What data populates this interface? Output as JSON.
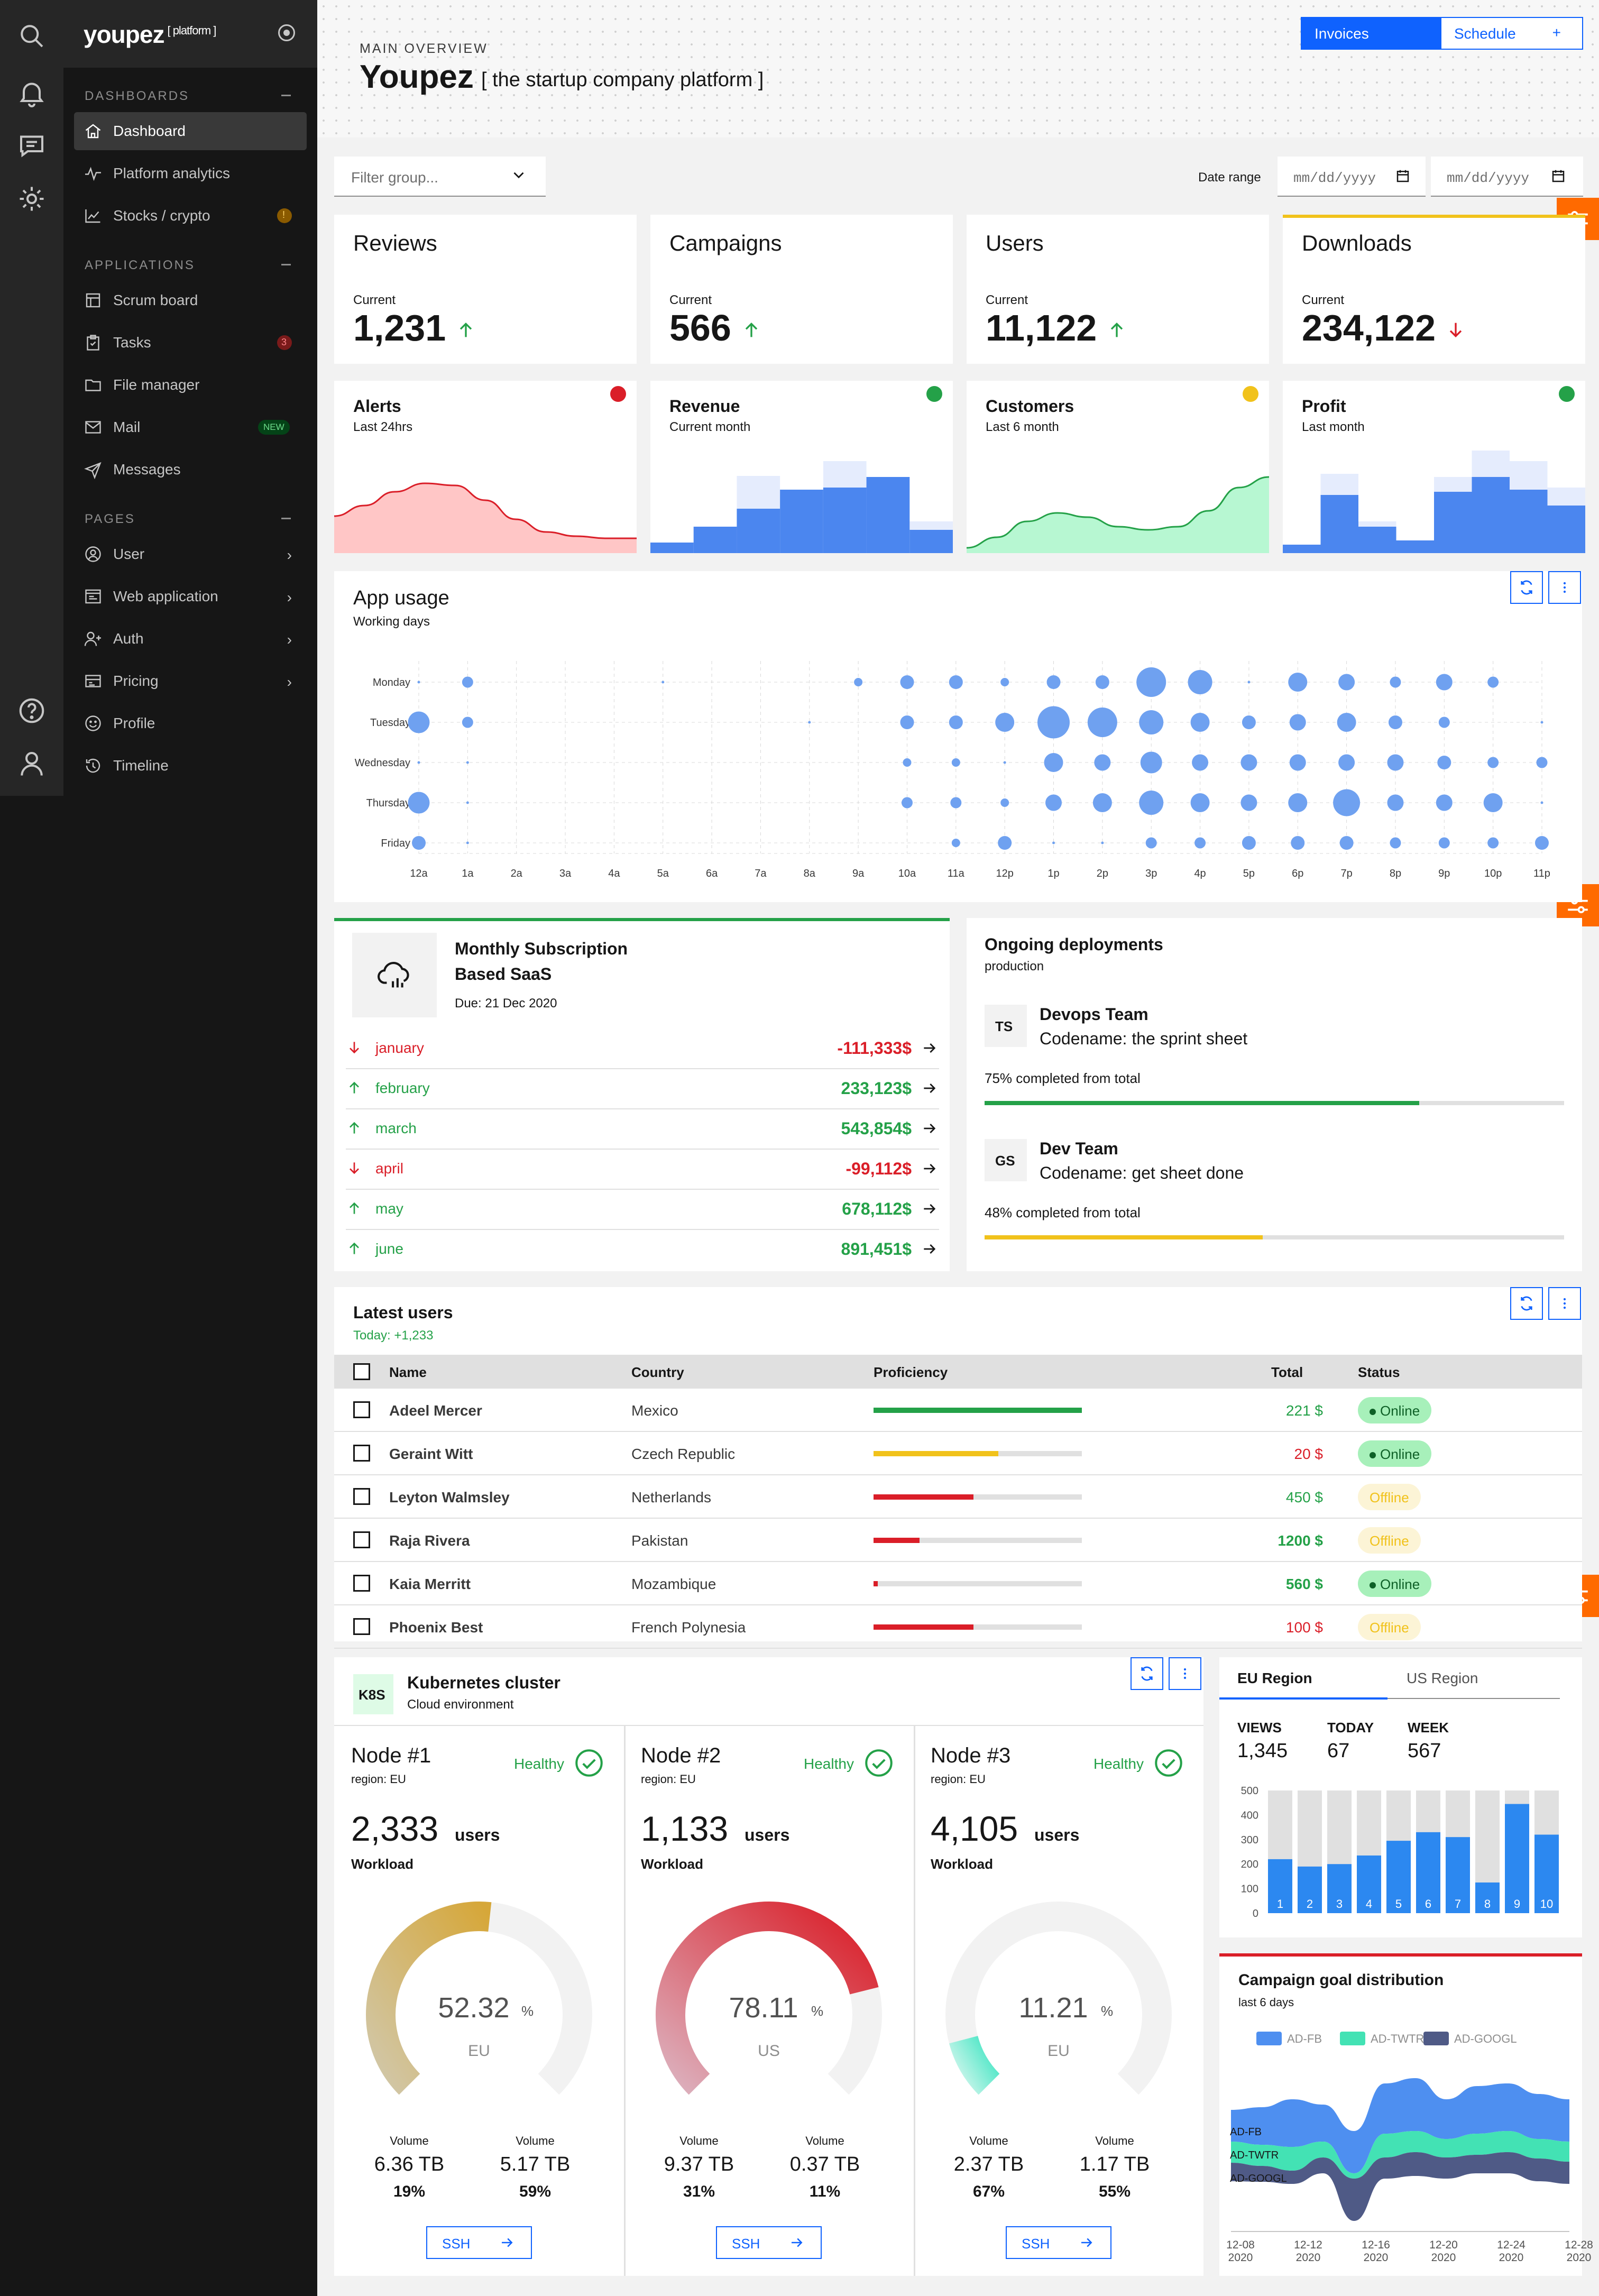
{
  "brand": {
    "name": "youpez",
    "tag": "[ platform ]"
  },
  "sidebar": {
    "sections": [
      {
        "label": "DASHBOARDS",
        "items": [
          {
            "label": "Dashboard",
            "active": true
          },
          {
            "label": "Platform analytics"
          },
          {
            "label": "Stocks / crypto",
            "badge": "!"
          }
        ]
      },
      {
        "label": "APPLICATIONS",
        "items": [
          {
            "label": "Scrum board"
          },
          {
            "label": "Tasks",
            "badge": "3"
          },
          {
            "label": "File manager"
          },
          {
            "label": "Mail",
            "badge": "NEW"
          },
          {
            "label": "Messages"
          }
        ]
      },
      {
        "label": "PAGES",
        "items": [
          {
            "label": "User"
          },
          {
            "label": "Web application"
          },
          {
            "label": "Auth"
          },
          {
            "label": "Pricing"
          },
          {
            "label": "Profile"
          },
          {
            "label": "Timeline"
          }
        ]
      }
    ]
  },
  "header": {
    "eyebrow": "MAIN OVERVIEW",
    "title": "Youpez",
    "subtitle": "[ the startup company platform ]",
    "invoices_label": "Invoices",
    "schedule_label": "Schedule",
    "schedule_icon": "+"
  },
  "filters": {
    "group_placeholder": "Filter group...",
    "date_range_label": "Date range",
    "date_placeholder": "mm/dd/yyyy"
  },
  "kpis": [
    {
      "title": "Reviews",
      "current_label": "Current",
      "value": "1,231",
      "trend": "up"
    },
    {
      "title": "Campaigns",
      "current_label": "Current",
      "value": "566",
      "trend": "up"
    },
    {
      "title": "Users",
      "current_label": "Current",
      "value": "11,122",
      "trend": "up"
    },
    {
      "title": "Downloads",
      "current_label": "Current",
      "value": "234,122",
      "trend": "down"
    }
  ],
  "mini_cards": [
    {
      "title": "Alerts",
      "subtitle": "Last 24hrs",
      "status_color": "#da1e28"
    },
    {
      "title": "Revenue",
      "subtitle": "Current month",
      "status_color": "#24a148"
    },
    {
      "title": "Customers",
      "subtitle": "Last 6 month",
      "status_color": "#f1c21b"
    },
    {
      "title": "Profit",
      "subtitle": "Last month",
      "status_color": "#24a148"
    }
  ],
  "app_usage": {
    "title": "App usage",
    "subtitle": "Working days"
  },
  "subscription": {
    "title_line1": "Monthly Subscription",
    "title_line2": "Based SaaS",
    "due": "Due: 21 Dec 2020",
    "rows": [
      {
        "month": "january",
        "amount": "-111,333$",
        "trend": "down"
      },
      {
        "month": "february",
        "amount": "233,123$",
        "trend": "up"
      },
      {
        "month": "march",
        "amount": "543,854$",
        "trend": "up"
      },
      {
        "month": "april",
        "amount": "-99,112$",
        "trend": "down"
      },
      {
        "month": "may",
        "amount": "678,112$",
        "trend": "up"
      },
      {
        "month": "june",
        "amount": "891,451$",
        "trend": "up"
      }
    ]
  },
  "deployments": {
    "title": "Ongoing deployments",
    "subtitle": "production",
    "items": [
      {
        "initials": "TS",
        "team": "Devops Team",
        "codename": "Codename: the sprint sheet",
        "progress_text": "75% completed from total",
        "progress": 0.75,
        "color": "#24a148"
      },
      {
        "initials": "GS",
        "team": "Dev Team",
        "codename": "Codename: get sheet done",
        "progress_text": "48% completed from total",
        "progress": 0.48,
        "color": "#f1c21b"
      }
    ]
  },
  "latest_users": {
    "title": "Latest users",
    "today": "Today: +1,233",
    "columns": [
      "Name",
      "Country",
      "Proficiency",
      "Total",
      "Status"
    ],
    "rows": [
      {
        "name": "Adeel Mercer",
        "country": "Mexico",
        "proficiency": 1.0,
        "bar_color": "#24a148",
        "total": "221 $",
        "total_color": "#24a148",
        "bold_total": false,
        "status": "Online"
      },
      {
        "name": "Geraint Witt",
        "country": "Czech Republic",
        "proficiency": 0.6,
        "bar_color": "#f1c21b",
        "total": "20 $",
        "total_color": "#da1e28",
        "bold_total": false,
        "status": "Online"
      },
      {
        "name": "Leyton Walmsley",
        "country": "Netherlands",
        "proficiency": 0.48,
        "bar_color": "#da1e28",
        "total": "450 $",
        "total_color": "#24a148",
        "bold_total": false,
        "status": "Offline"
      },
      {
        "name": "Raja Rivera",
        "country": "Pakistan",
        "proficiency": 0.22,
        "bar_color": "#da1e28",
        "total": "1200 $",
        "total_color": "#24a148",
        "bold_total": true,
        "status": "Offline"
      },
      {
        "name": "Kaia Merritt",
        "country": "Mozambique",
        "proficiency": 0.02,
        "bar_color": "#da1e28",
        "total": "560 $",
        "total_color": "#24a148",
        "bold_total": true,
        "status": "Online"
      },
      {
        "name": "Phoenix Best",
        "country": "French Polynesia",
        "proficiency": 0.48,
        "bar_color": "#da1e28",
        "total": "100 $",
        "total_color": "#da1e28",
        "bold_total": false,
        "status": "Offline"
      }
    ]
  },
  "kubernetes": {
    "badge": "K8S",
    "title": "Kubernetes cluster",
    "subtitle": "Cloud environment",
    "nodes": [
      {
        "name": "Node #1",
        "region": "region: EU",
        "health": "Healthy",
        "users": "2,333",
        "users_label": "users",
        "workload_label": "Workload",
        "pct": "52.32",
        "pct_value": 52.32,
        "pct_sign": "%",
        "loc": "EU",
        "gauge_color": "#d6a739",
        "gauge_color2": "#d1c7a8",
        "volumes": [
          {
            "label": "Volume",
            "value": "6.36 TB",
            "pct": "19%"
          },
          {
            "label": "Volume",
            "value": "5.17 TB",
            "pct": "59%"
          }
        ],
        "ssh": "SSH"
      },
      {
        "name": "Node #2",
        "region": "region: EU",
        "health": "Healthy",
        "users": "1,133",
        "users_label": "users",
        "workload_label": "Workload",
        "pct": "78.11",
        "pct_value": 78.11,
        "pct_sign": "%",
        "loc": "US",
        "gauge_color": "#da1e28",
        "gauge_color2": "#dcb0bd",
        "volumes": [
          {
            "label": "Volume",
            "value": "9.37 TB",
            "pct": "31%"
          },
          {
            "label": "Volume",
            "value": "0.37 TB",
            "pct": "11%"
          }
        ],
        "ssh": "SSH"
      },
      {
        "name": "Node #3",
        "region": "region: EU",
        "health": "Healthy",
        "users": "4,105",
        "users_label": "users",
        "workload_label": "Workload",
        "pct": "11.21",
        "pct_value": 11.21,
        "pct_sign": "%",
        "loc": "EU",
        "gauge_color": "#42e5c3",
        "gauge_color2": "#c8f5ea",
        "volumes": [
          {
            "label": "Volume",
            "value": "2.37 TB",
            "pct": "67%"
          },
          {
            "label": "Volume",
            "value": "1.17 TB",
            "pct": "55%"
          }
        ],
        "ssh": "SSH"
      }
    ]
  },
  "region": {
    "tabs": [
      "EU Region",
      "US Region"
    ],
    "stats": [
      {
        "label": "VIEWS",
        "value": "1,345"
      },
      {
        "label": "TODAY",
        "value": "67"
      },
      {
        "label": "WEEK",
        "value": "567"
      }
    ]
  },
  "campaign": {
    "title": "Campaign goal distribution",
    "subtitle": "last 6 days"
  },
  "colors": {
    "accent": "#0f62fe",
    "green": "#24a148",
    "red": "#da1e28",
    "yellow": "#f1c21b",
    "orange": "#ff6a00"
  },
  "chart_data": [
    {
      "type": "area",
      "title": "Alerts",
      "values": [
        0.35,
        0.45,
        0.58,
        0.66,
        0.64,
        0.5,
        0.32,
        0.2,
        0.16,
        0.14,
        0.14
      ]
    },
    {
      "type": "bar",
      "title": "Revenue",
      "series": [
        {
          "values": [
            0.1,
            0.25,
            0.42,
            0.6,
            0.62,
            0.72,
            0.22
          ]
        },
        {
          "values": [
            0.1,
            0.25,
            0.73,
            0.55,
            0.87,
            0.65,
            0.3
          ]
        }
      ]
    },
    {
      "type": "area",
      "title": "Customers",
      "values": [
        0.05,
        0.15,
        0.3,
        0.38,
        0.34,
        0.25,
        0.22,
        0.25,
        0.4,
        0.62,
        0.72
      ]
    },
    {
      "type": "bar",
      "title": "Profit",
      "series": [
        {
          "values": [
            0.08,
            0.55,
            0.25,
            0.12,
            0.58,
            0.72,
            0.6,
            0.45
          ]
        },
        {
          "values": [
            0.08,
            0.75,
            0.3,
            0.12,
            0.72,
            0.97,
            0.87,
            0.62
          ]
        }
      ]
    },
    {
      "type": "scatter",
      "title": "App usage",
      "x_labels": [
        "12a",
        "1a",
        "2a",
        "3a",
        "4a",
        "5a",
        "6a",
        "7a",
        "8a",
        "9a",
        "10a",
        "11a",
        "12p",
        "1p",
        "2p",
        "3p",
        "4p",
        "5p",
        "6p",
        "7p",
        "8p",
        "9p",
        "10p",
        "11p"
      ],
      "y_labels": [
        "Monday",
        "Tuesday",
        "Wednesday",
        "Thursday",
        "Friday"
      ],
      "values": [
        [
          1,
          3,
          0,
          0,
          0,
          1,
          0,
          0,
          0,
          2,
          4,
          4,
          2,
          4,
          4,
          10,
          8,
          1,
          6,
          5,
          3,
          5,
          3,
          0
        ],
        [
          7,
          3,
          0,
          0,
          0,
          0,
          0,
          0,
          1,
          0,
          4,
          4,
          6,
          11,
          10,
          8,
          6,
          4,
          5,
          6,
          4,
          3,
          0,
          1
        ],
        [
          1,
          1,
          0,
          0,
          0,
          0,
          0,
          0,
          0,
          0,
          2,
          2,
          1,
          6,
          5,
          7,
          5,
          5,
          5,
          5,
          5,
          4,
          3,
          3
        ],
        [
          7,
          1,
          0,
          0,
          0,
          0,
          0,
          0,
          0,
          0,
          3,
          3,
          2,
          5,
          6,
          8,
          6,
          5,
          6,
          9,
          5,
          5,
          6,
          1
        ],
        [
          4,
          1,
          0,
          0,
          0,
          0,
          0,
          0,
          0,
          0,
          0,
          2,
          4,
          1,
          1,
          3,
          3,
          4,
          4,
          4,
          3,
          3,
          3,
          4
        ]
      ]
    },
    {
      "type": "bar",
      "title": "EU Region",
      "categories": [
        "1",
        "2",
        "3",
        "4",
        "5",
        "6",
        "7",
        "8",
        "9",
        "10"
      ],
      "values": [
        220,
        190,
        200,
        235,
        295,
        330,
        310,
        125,
        445,
        320
      ],
      "y_ticks": [
        "500",
        "400",
        "300",
        "200",
        "100",
        "0"
      ],
      "ylim": [
        0,
        500
      ]
    },
    {
      "type": "area",
      "title": "Campaign goal distribution",
      "series": [
        {
          "name": "AD-FB",
          "color": "#4e8ff0"
        },
        {
          "name": "AD-TWTR",
          "color": "#43e2b4"
        },
        {
          "name": "AD-GOOGL",
          "color": "#4f5a86"
        }
      ],
      "x_labels": [
        "12-08\n2020",
        "12-12\n2020",
        "12-16\n2020",
        "12-20\n2020",
        "12-24\n2020",
        "12-28\n2020"
      ]
    }
  ]
}
